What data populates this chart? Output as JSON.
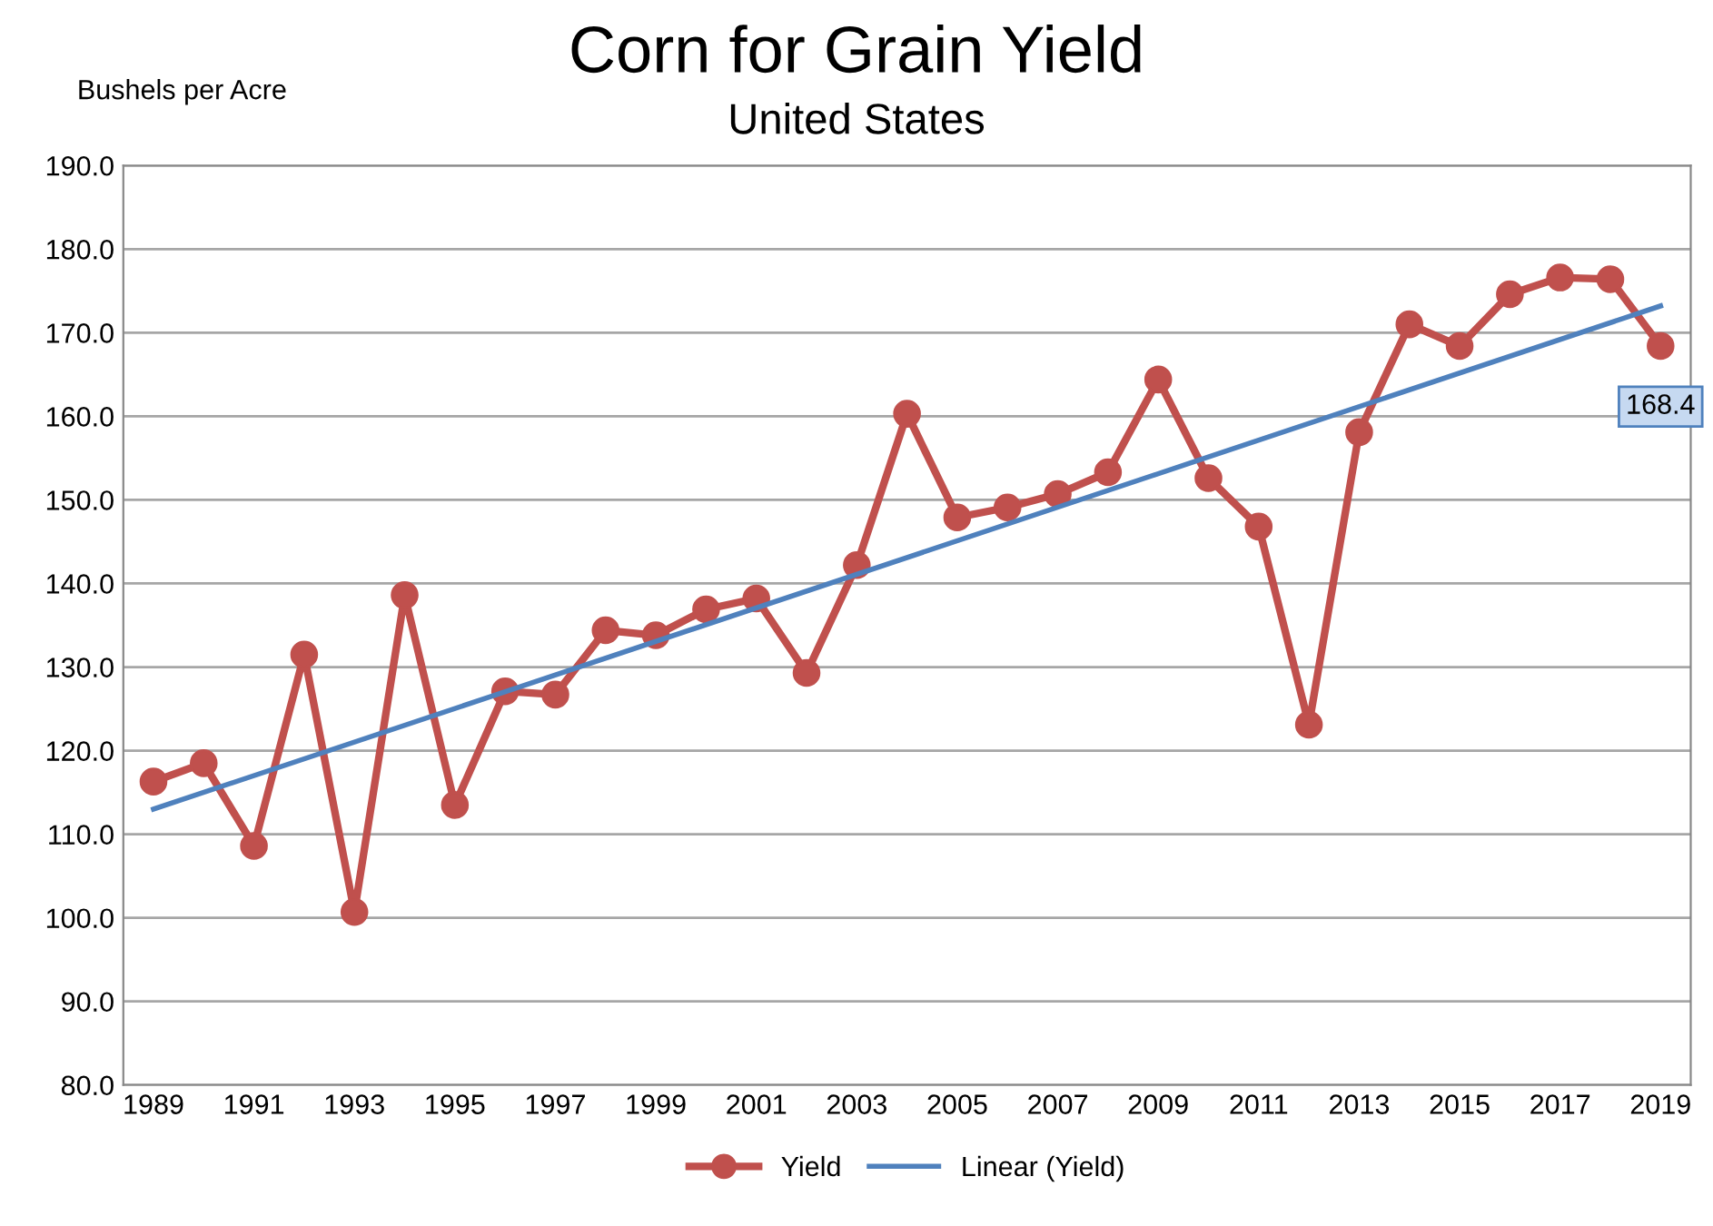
{
  "chart_data": {
    "type": "line",
    "title": "Corn for Grain Yield",
    "subtitle": "United States",
    "ylabel": "Bushels per Acre",
    "xlim": [
      1988.4,
      2019.6
    ],
    "xticks": [
      1989,
      1991,
      1993,
      1995,
      1997,
      1999,
      2001,
      2003,
      2005,
      2007,
      2009,
      2011,
      2013,
      2015,
      2017,
      2019
    ],
    "ylim": [
      80,
      190
    ],
    "yticks": [
      {
        "value": 80,
        "label": "80.0"
      },
      {
        "value": 90,
        "label": "90.0"
      },
      {
        "value": 100,
        "label": "100.0"
      },
      {
        "value": 110,
        "label": "110.0"
      },
      {
        "value": 120,
        "label": "120.0"
      },
      {
        "value": 130,
        "label": "130.0"
      },
      {
        "value": 140,
        "label": "140.0"
      },
      {
        "value": 150,
        "label": "150.0"
      },
      {
        "value": 160,
        "label": "160.0"
      },
      {
        "value": 170,
        "label": "170.0"
      },
      {
        "value": 180,
        "label": "180.0"
      },
      {
        "value": 190,
        "label": "190.0"
      }
    ],
    "grid": "y",
    "legend": "bottom",
    "series": [
      {
        "name": "Yield",
        "color": "#c0504d",
        "marker": "circle",
        "x": [
          1989,
          1990,
          1991,
          1992,
          1993,
          1994,
          1995,
          1996,
          1997,
          1998,
          1999,
          2000,
          2001,
          2002,
          2003,
          2004,
          2005,
          2006,
          2007,
          2008,
          2009,
          2010,
          2011,
          2012,
          2013,
          2014,
          2015,
          2016,
          2017,
          2018,
          2019
        ],
        "values": [
          116.3,
          118.5,
          108.6,
          131.5,
          100.7,
          138.6,
          113.5,
          127.1,
          126.7,
          134.4,
          133.8,
          136.9,
          138.2,
          129.3,
          142.2,
          160.3,
          147.9,
          149.1,
          150.7,
          153.3,
          164.4,
          152.6,
          146.8,
          123.1,
          158.1,
          171.0,
          168.4,
          174.6,
          176.6,
          176.4,
          168.4
        ],
        "value_labels": [
          null,
          null,
          null,
          null,
          null,
          null,
          null,
          null,
          null,
          null,
          null,
          null,
          null,
          null,
          null,
          null,
          null,
          null,
          null,
          null,
          null,
          null,
          null,
          null,
          null,
          null,
          null,
          null,
          null,
          null,
          "168.4"
        ]
      },
      {
        "name": "Linear (Yield)",
        "color": "#4f81bd",
        "marker": "none",
        "x": [
          1989,
          2019
        ],
        "values": [
          113,
          173.2
        ]
      }
    ]
  }
}
